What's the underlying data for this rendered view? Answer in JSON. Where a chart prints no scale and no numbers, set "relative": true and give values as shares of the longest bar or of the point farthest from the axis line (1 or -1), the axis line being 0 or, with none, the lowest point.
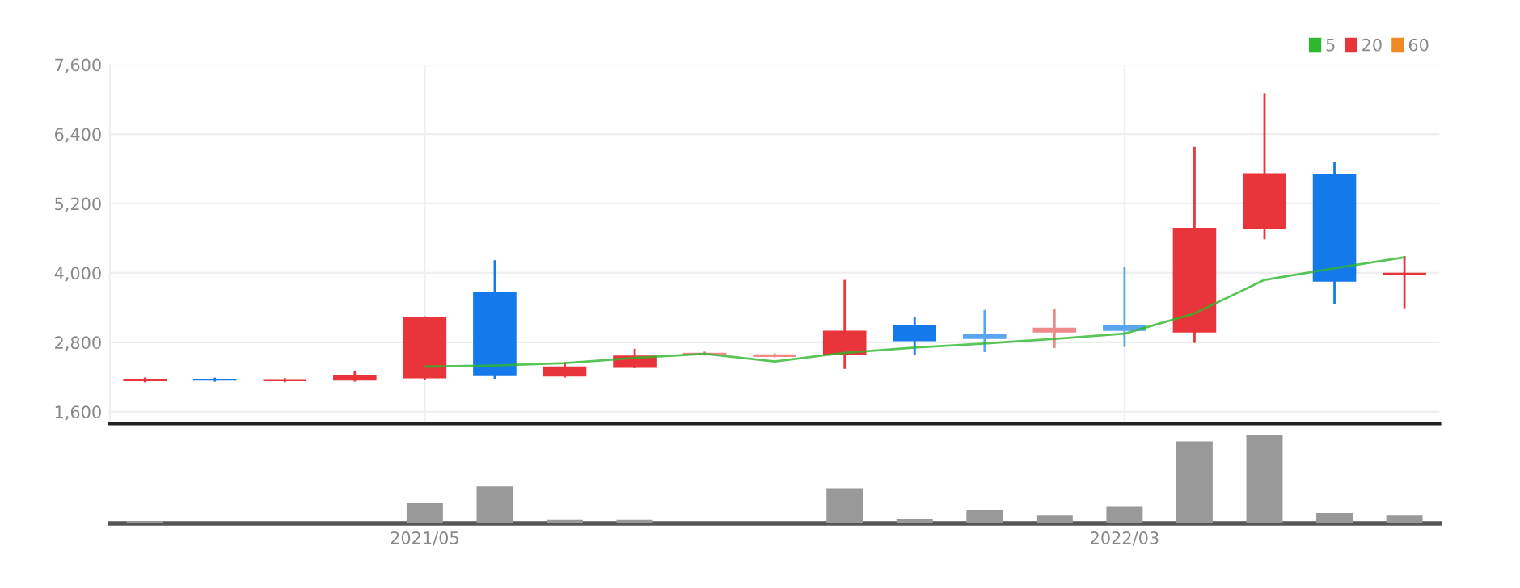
{
  "chart_data": [
    {
      "type": "candlestick",
      "categories": [
        null,
        null,
        null,
        null,
        "2021/05",
        null,
        null,
        null,
        null,
        null,
        null,
        null,
        null,
        null,
        "2022/03",
        null,
        null,
        null,
        null
      ],
      "ohlc": [
        [
          2140,
          2170,
          2130,
          2160
        ],
        [
          2160,
          2170,
          2140,
          2150
        ],
        [
          2140,
          2160,
          2130,
          2150
        ],
        [
          2150,
          2290,
          2140,
          2230
        ],
        [
          2190,
          3230,
          2170,
          3230
        ],
        [
          3660,
          4200,
          2190,
          2240
        ],
        [
          2220,
          2440,
          2210,
          2370
        ],
        [
          2370,
          2670,
          2370,
          2560
        ],
        [
          2590,
          2620,
          2590,
          2610
        ],
        [
          2560,
          2590,
          2560,
          2580
        ],
        [
          2600,
          3860,
          2360,
          2990
        ],
        [
          3080,
          3210,
          2600,
          2830
        ],
        [
          2940,
          3340,
          2650,
          2870
        ],
        [
          2980,
          3360,
          2720,
          3040
        ],
        [
          3080,
          4080,
          2740,
          3010
        ],
        [
          2980,
          6160,
          2810,
          4770
        ],
        [
          4780,
          7090,
          4600,
          5710
        ],
        [
          5690,
          5900,
          3480,
          3860
        ],
        [
          3970,
          4270,
          3410,
          3990
        ]
      ],
      "colors": [
        "#e8343a",
        "#1479ea",
        "#e8343a",
        "#e8343a",
        "#e8343a",
        "#1479ea",
        "#e8343a",
        "#e8343a",
        "#ee8a8a",
        "#ee8a8a",
        "#e8343a",
        "#1479ea",
        "#5aa5f0",
        "#ee8a8a",
        "#5aa5f0",
        "#e8343a",
        "#e8343a",
        "#1479ea",
        "#e8343a"
      ],
      "series": [
        {
          "name": "5",
          "type": "line",
          "color": "#2db82d",
          "values": [
            null,
            null,
            null,
            null,
            2380,
            2400,
            2440,
            2530,
            2600,
            2470,
            2620,
            2710,
            2780,
            2860,
            2950,
            3300,
            3880,
            4080,
            4270
          ]
        },
        {
          "name": "20",
          "type": "line",
          "color": "#e8343a",
          "values": [
            null,
            null,
            null,
            null,
            null,
            null,
            null,
            null,
            null,
            null,
            null,
            null,
            null,
            null,
            null,
            null,
            null,
            null,
            null
          ]
        },
        {
          "name": "60",
          "type": "line",
          "color": "#f08a24",
          "values": [
            null,
            null,
            null,
            null,
            null,
            null,
            null,
            null,
            null,
            null,
            null,
            null,
            null,
            null,
            null,
            null,
            null,
            null,
            null
          ]
        }
      ],
      "ylim": [
        1400,
        7600
      ],
      "yticks": [
        {
          "value": 1600,
          "label": "1,600"
        },
        {
          "value": 2800,
          "label": "2,800"
        },
        {
          "value": 4000,
          "label": "4,000"
        },
        {
          "value": 5200,
          "label": "5,200"
        },
        {
          "value": 6400,
          "label": "6,400"
        },
        {
          "value": 7600,
          "label": "7,600"
        }
      ],
      "tick_labels": "y",
      "grid": true,
      "legend": "top right"
    },
    {
      "type": "bar",
      "relative": true,
      "categories": [
        null,
        null,
        null,
        null,
        "2021/05",
        null,
        null,
        null,
        null,
        null,
        null,
        null,
        null,
        null,
        "2022/03",
        null,
        null,
        null,
        null
      ],
      "values": [
        0.02,
        0,
        0,
        0,
        0.22,
        0.41,
        0.03,
        0.03,
        0,
        0,
        0.39,
        0.04,
        0.14,
        0.08,
        0.18,
        0.92,
        1,
        0.11,
        0.08
      ],
      "color": "#999999"
    }
  ]
}
